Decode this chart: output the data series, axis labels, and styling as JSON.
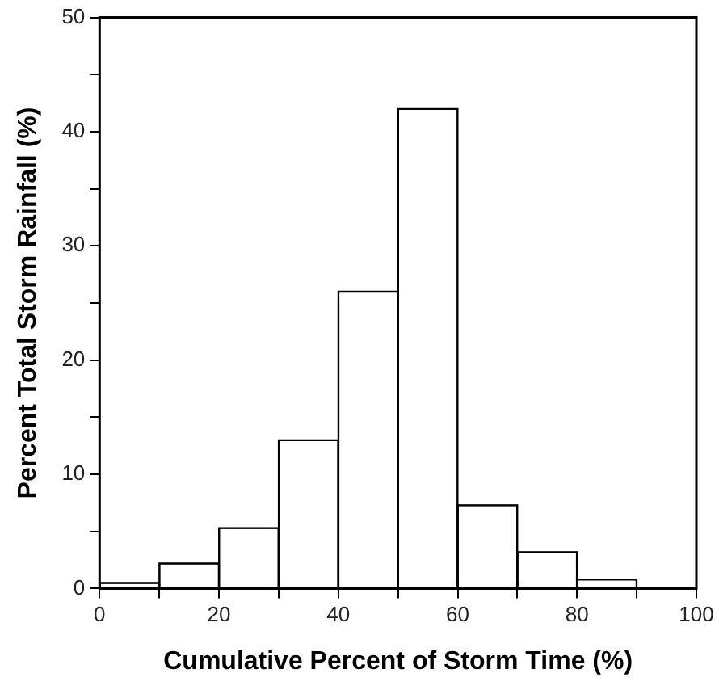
{
  "chart_data": {
    "type": "histogram",
    "xlabel": "Cumulative Percent of Storm Time (%)",
    "ylabel": "Percent Total Storm Rainfall (%)",
    "bins": [
      0,
      10,
      20,
      30,
      40,
      50,
      60,
      70,
      80,
      90,
      100
    ],
    "values": [
      0.5,
      2.2,
      5.3,
      13,
      26,
      42,
      7.3,
      3.2,
      0.8,
      0
    ],
    "color": "#ffffff",
    "xlim": [
      0,
      100
    ],
    "xticks": [
      0,
      {
        "value": 10,
        "label": null
      },
      20,
      {
        "value": 30,
        "label": null
      },
      40,
      {
        "value": 50,
        "label": null
      },
      60,
      {
        "value": 70,
        "label": null
      },
      80,
      {
        "value": 90,
        "label": null
      },
      100
    ],
    "ylim": [
      0,
      50
    ],
    "yticks": [
      0,
      {
        "value": 5,
        "label": null
      },
      10,
      {
        "value": 15,
        "label": null
      },
      20,
      {
        "value": 25,
        "label": null
      },
      30,
      {
        "value": 35,
        "label": null
      },
      40,
      {
        "value": 45,
        "label": null
      },
      50
    ],
    "grid": false,
    "legend": false
  }
}
